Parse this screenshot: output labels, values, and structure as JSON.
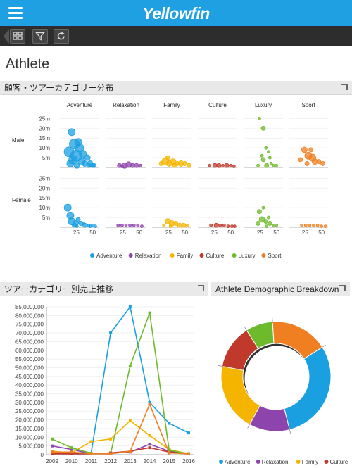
{
  "app": {
    "logo": "Yellowfin"
  },
  "page": {
    "title": "Athlete"
  },
  "panels": {
    "bubble": "顧客・ツアーカテゴリー分布",
    "line": "ツアーカテゴリー別売上推移",
    "donut": "Athlete Demographic Breakdown"
  },
  "colors": {
    "Adventure": "#1a9fe0",
    "Relaxation": "#8e44ad",
    "Family": "#f5b400",
    "Culture": "#c0392b",
    "Luxury": "#6dba2c",
    "Sport": "#f07f22"
  },
  "chart_data": [
    {
      "type": "scatter",
      "subtype": "bubble-trellis",
      "columns": [
        "Adventure",
        "Relaxation",
        "Family",
        "Culture",
        "Luxury",
        "Sport"
      ],
      "rows": [
        "Male",
        "Female"
      ],
      "y_ticks": [
        "5m",
        "10m",
        "15m",
        "20m",
        "25m"
      ],
      "x_ticks": [
        "25",
        "50"
      ],
      "xlim": [
        0,
        60
      ],
      "ylim": [
        0,
        28
      ],
      "legend": [
        "Adventure",
        "Relaxation",
        "Family",
        "Culture",
        "Luxury",
        "Sport"
      ],
      "points": {
        "Male": {
          "Adventure": [
            [
              14,
              8,
              7
            ],
            [
              20,
              4,
              6
            ],
            [
              25,
              6,
              8
            ],
            [
              30,
              10,
              6
            ],
            [
              33,
              3,
              5
            ],
            [
              38,
              2,
              4
            ],
            [
              42,
              5,
              4
            ],
            [
              46,
              2,
              4
            ],
            [
              50,
              1,
              3
            ],
            [
              22,
              12,
              7
            ],
            [
              18,
              18,
              5
            ],
            [
              28,
              13,
              5
            ],
            [
              35,
              7,
              5
            ],
            [
              16,
              2,
              5
            ],
            [
              26,
              1,
              4
            ],
            [
              44,
              1,
              3
            ],
            [
              52,
              1,
              3
            ]
          ],
          "Relaxation": [
            [
              20,
              1,
              3
            ],
            [
              28,
              1,
              4
            ],
            [
              34,
              1.5,
              4
            ],
            [
              40,
              1,
              3
            ],
            [
              46,
              1,
              3
            ],
            [
              52,
              1,
              2
            ],
            [
              24,
              0.5,
              2
            ]
          ],
          "Family": [
            [
              14,
              2,
              3
            ],
            [
              20,
              3,
              5
            ],
            [
              26,
              2,
              4
            ],
            [
              32,
              3,
              4
            ],
            [
              38,
              2,
              3
            ],
            [
              44,
              2,
              4
            ],
            [
              50,
              2,
              3
            ],
            [
              56,
              1,
              3
            ],
            [
              24,
              5,
              3
            ],
            [
              34,
              1,
              3
            ]
          ],
          "Culture": [
            [
              18,
              1,
              2
            ],
            [
              26,
              1,
              3
            ],
            [
              32,
              1,
              3
            ],
            [
              38,
              1,
              2
            ],
            [
              44,
              1,
              3
            ],
            [
              50,
              1,
              2
            ],
            [
              55,
              0.5,
              2
            ]
          ],
          "Luxury": [
            [
              24,
              25,
              2
            ],
            [
              30,
              20,
              3
            ],
            [
              34,
              10,
              2
            ],
            [
              28,
              6,
              2
            ],
            [
              30,
              4,
              3
            ],
            [
              40,
              5,
              2
            ],
            [
              38,
              8,
              2
            ],
            [
              35,
              1,
              3
            ],
            [
              45,
              1,
              2
            ],
            [
              22,
              1,
              2
            ],
            [
              50,
              1,
              2
            ],
            [
              42,
              2,
              2
            ]
          ],
          "Sport": [
            [
              18,
              4,
              3
            ],
            [
              24,
              9,
              4
            ],
            [
              30,
              6,
              5
            ],
            [
              36,
              5,
              5
            ],
            [
              40,
              3,
              4
            ],
            [
              46,
              3,
              3
            ],
            [
              52,
              2,
              3
            ],
            [
              28,
              2,
              3
            ],
            [
              34,
              9,
              3
            ]
          ]
        },
        "Female": {
          "Adventure": [
            [
              12,
              10,
              5
            ],
            [
              16,
              6,
              5
            ],
            [
              18,
              3,
              5
            ],
            [
              24,
              2,
              4
            ],
            [
              28,
              4,
              3
            ],
            [
              32,
              2,
              3
            ],
            [
              38,
              1,
              3
            ],
            [
              44,
              1,
              2
            ],
            [
              50,
              1,
              2
            ],
            [
              22,
              1,
              3
            ],
            [
              26,
              0.5,
              2
            ],
            [
              36,
              2,
              2
            ],
            [
              46,
              0.5,
              2
            ],
            [
              54,
              0.5,
              2
            ]
          ],
          "Relaxation": [
            [
              18,
              1,
              2
            ],
            [
              24,
              1,
              2
            ],
            [
              30,
              1,
              2
            ],
            [
              36,
              1,
              2
            ],
            [
              42,
              1,
              2
            ],
            [
              48,
              1,
              2
            ],
            [
              54,
              0.5,
              2
            ]
          ],
          "Family": [
            [
              18,
              1,
              2
            ],
            [
              24,
              3,
              4
            ],
            [
              30,
              2,
              4
            ],
            [
              36,
              2,
              3
            ],
            [
              42,
              1,
              3
            ],
            [
              48,
              1,
              3
            ],
            [
              54,
              1,
              2
            ],
            [
              28,
              0.5,
              2
            ]
          ],
          "Culture": [
            [
              20,
              1,
              2
            ],
            [
              28,
              1,
              3
            ],
            [
              34,
              1,
              2
            ],
            [
              40,
              1,
              2
            ],
            [
              46,
              0.5,
              2
            ],
            [
              52,
              0.5,
              2
            ],
            [
              56,
              0.5,
              2
            ]
          ],
          "Luxury": [
            [
              24,
              8,
              3
            ],
            [
              30,
              10,
              2
            ],
            [
              28,
              4,
              4
            ],
            [
              34,
              3,
              3
            ],
            [
              38,
              5,
              2
            ],
            [
              40,
              2,
              3
            ],
            [
              46,
              1,
              2
            ],
            [
              22,
              2,
              3
            ],
            [
              50,
              1,
              2
            ],
            [
              35,
              0.5,
              2
            ]
          ],
          "Sport": [
            [
              20,
              1,
              2
            ],
            [
              26,
              1,
              2
            ],
            [
              32,
              1,
              2
            ],
            [
              38,
              1,
              2
            ],
            [
              44,
              1,
              2
            ],
            [
              50,
              0.5,
              2
            ],
            [
              56,
              0.5,
              2
            ]
          ]
        }
      }
    },
    {
      "type": "line",
      "categories": [
        "2009",
        "2010",
        "2011",
        "2012",
        "2013",
        "2014",
        "2015",
        "2016"
      ],
      "ylim": [
        0,
        85000000
      ],
      "y_ticks": [
        "0",
        "5,000,000",
        "10,000,000",
        "15,000,000",
        "20,000,000",
        "25,000,000",
        "30,000,000",
        "35,000,000",
        "40,000,000",
        "45,000,000",
        "50,000,000",
        "55,000,000",
        "60,000,000",
        "65,000,000",
        "70,000,000",
        "75,000,000",
        "80,000,000",
        "85,000,000"
      ],
      "series": [
        {
          "name": "Adventure",
          "values": [
            1000000,
            500000,
            800000,
            70000000,
            85000000,
            30000000,
            18000000,
            12500000
          ]
        },
        {
          "name": "Relaxation",
          "values": [
            5000000,
            3000000,
            500000,
            1000000,
            1500000,
            6000000,
            2000000,
            500000
          ]
        },
        {
          "name": "Family",
          "values": [
            2000000,
            1000000,
            7500000,
            9000000,
            19500000,
            11000000,
            3000000,
            500000
          ]
        },
        {
          "name": "Culture",
          "values": [
            500000,
            500000,
            500000,
            1000000,
            2000000,
            4000000,
            1500000,
            500000
          ]
        },
        {
          "name": "Luxury",
          "values": [
            9000000,
            4000000,
            800000,
            500000,
            51000000,
            81500000,
            2500000,
            500000
          ]
        },
        {
          "name": "Sport",
          "values": [
            1500000,
            1500000,
            500000,
            500000,
            2000000,
            29000000,
            1000000,
            500000
          ]
        }
      ]
    },
    {
      "type": "pie",
      "subtype": "donut",
      "labels": [
        "Adventure",
        "Relaxation",
        "Family",
        "Culture",
        "Luxury",
        "Sport"
      ],
      "values": [
        30,
        12,
        20,
        13,
        8,
        17
      ],
      "legend": [
        "Adventure",
        "Relaxation",
        "Family",
        "Culture"
      ]
    }
  ]
}
